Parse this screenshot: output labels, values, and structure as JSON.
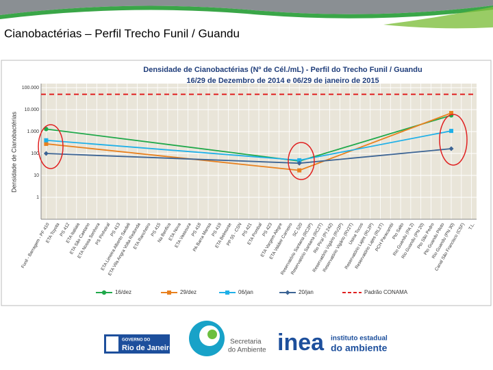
{
  "slide": {
    "title": "Cianobactérias – Perfil Trecho Funil / Guandu",
    "logos": {
      "gov_top": "GOVERNO DO",
      "gov_name": "Rio de Janeiro",
      "sea_1": "Secretaria",
      "sea_2": "do Ambiente",
      "inea": "inea",
      "inea_1": "instituto estadual",
      "inea_2": "do ambiente"
    }
  },
  "chart_data": {
    "type": "line",
    "title": "Densidade de Cianobactérias (Nº de Cél./mL) - Perfil do Trecho Funil / Guandu",
    "subtitle": "16/29 de Dezembro de 2014 e 06/29 de janeiro de 2015",
    "y_label": "Densidade de Cianobactérias",
    "log_scale": true,
    "grid": true,
    "ylim": [
      0.1,
      100000
    ],
    "yticks": [
      1,
      10,
      100,
      {
        "value": 1000,
        "label": "1.000"
      },
      {
        "value": 10000,
        "label": "10.000"
      },
      {
        "value": 100000,
        "label": "100.000"
      }
    ],
    "categories": [
      "Funil - Barragem - PF 410",
      "ETA Toyota",
      "PS 412",
      "ETA Itatiaia",
      "ETA São Caetano",
      "ETA Nossa Senhora",
      "PS Pinheiral",
      "PS 413",
      "ETA Limeira Alberto Sardeli",
      "ETA Vila Angra Volta Redonda",
      "ETA Rancheiro",
      "PS 415",
      "Na Benfica",
      "ETA Nova",
      "ETA Vassoura",
      "PS 418",
      "PA Barra Mansa",
      "PS 419",
      "ETA Belmonte",
      "PP 55 - CSN",
      "PS 421",
      "ETA Pombal",
      "PS 423",
      "ETA Vargem Alegre",
      "ETA Valdeir Carneiro",
      "SC 520",
      "Reservatório Santana (RC2P)",
      "Reservatório Santana (RC2T)",
      "Rio Piraí (PI 242)",
      "Reservatório Vigário (RV2P)",
      "Reservatório Vigário (RV2T)",
      "Usina Tocos",
      "Reservatório Lajes (RL2P)",
      "Reservatório Lajes (RL2T)",
      "PCH Paracambi",
      "Pto Salto",
      "Rio Guandu (PA 2)",
      "Rio Guandu (PN 20)",
      "Pto São Pedro",
      "Pto Guandu Piloto",
      "Rio Guandu (PN 30)",
      "Canal São Francisco (CSF)",
      "T.L."
    ],
    "series": [
      {
        "name": "16/dez",
        "color": "#1fa84a",
        "marker": "circle",
        "values": [
          1300,
          null,
          null,
          null,
          null,
          null,
          null,
          null,
          null,
          null,
          null,
          null,
          null,
          null,
          null,
          null,
          null,
          null,
          null,
          null,
          null,
          null,
          null,
          null,
          null,
          45,
          null,
          null,
          null,
          null,
          null,
          null,
          null,
          null,
          null,
          null,
          null,
          null,
          null,
          null,
          5500,
          null,
          null
        ]
      },
      {
        "name": "29/dez",
        "color": "#e8801e",
        "marker": "square",
        "values": [
          275,
          null,
          null,
          null,
          null,
          null,
          null,
          null,
          null,
          null,
          null,
          null,
          null,
          null,
          null,
          null,
          null,
          null,
          null,
          null,
          null,
          null,
          null,
          null,
          null,
          17,
          null,
          null,
          null,
          null,
          null,
          null,
          null,
          null,
          null,
          null,
          null,
          null,
          null,
          null,
          7000,
          null,
          null
        ]
      },
      {
        "name": "06/jan",
        "color": "#1fb0e8",
        "marker": "square",
        "values": [
          400,
          null,
          null,
          null,
          null,
          null,
          null,
          null,
          null,
          null,
          null,
          null,
          null,
          null,
          null,
          null,
          null,
          null,
          null,
          null,
          null,
          null,
          null,
          null,
          null,
          49,
          null,
          null,
          null,
          null,
          null,
          null,
          null,
          null,
          null,
          null,
          null,
          null,
          null,
          null,
          1070,
          null,
          null
        ]
      },
      {
        "name": "20/jan",
        "color": "#3c6494",
        "marker": "diamond",
        "values": [
          100,
          null,
          null,
          null,
          null,
          null,
          null,
          null,
          null,
          null,
          null,
          null,
          null,
          null,
          null,
          null,
          null,
          null,
          null,
          null,
          null,
          null,
          null,
          null,
          null,
          36,
          null,
          null,
          null,
          null,
          null,
          null,
          null,
          null,
          null,
          null,
          null,
          null,
          null,
          null,
          165,
          null,
          null
        ]
      }
    ],
    "reference": {
      "name": "Padrão CONAMA",
      "value": 50000,
      "color": "#e02020"
    }
  }
}
